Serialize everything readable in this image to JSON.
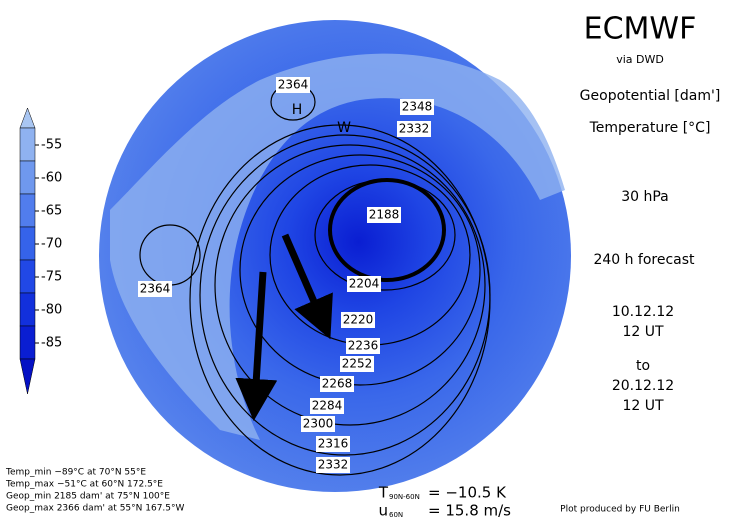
{
  "header": {
    "title": "ECMWF",
    "subtitle": "via DWD"
  },
  "fields": [
    "Geopotential [dam']",
    "Temperature [°C]"
  ],
  "level": "30 hPa",
  "forecast": "240 h forecast",
  "valid": [
    "10.12.12",
    "12 UT",
    "to",
    "20.12.12",
    "12 UT"
  ],
  "colorbar": {
    "ticks": [
      -55,
      -60,
      -65,
      -70,
      -75,
      -80,
      -85
    ],
    "colors": [
      "#a9c6f2",
      "#8fb2f0",
      "#6f98ee",
      "#517ded",
      "#3563ea",
      "#2148e6",
      "#1230dc",
      "#0a1ed2",
      "#0511c4"
    ]
  },
  "contour_labels": [
    2364,
    2348,
    2332,
    2188,
    2204,
    2220,
    2236,
    2252,
    2268,
    2284,
    2300,
    2316,
    2332,
    2364
  ],
  "map_labels": [
    "H",
    "W"
  ],
  "stats": [
    "Temp_min −89°C at 70°N 55°E",
    "Temp_max −51°C at 60°N 172.5°E",
    "Geop_min 2185 dam' at 75°N 100°E",
    "Geop_max 2366 dam' at 55°N 167.5°W"
  ],
  "indices": [
    {
      "symbol": "T",
      "sub": "90N-60N",
      "text": "= −10.5 K"
    },
    {
      "symbol": "u",
      "sub": "60N",
      "text": "= 15.8 m/s"
    }
  ],
  "credit": "Plot produced by FU Berlin"
}
